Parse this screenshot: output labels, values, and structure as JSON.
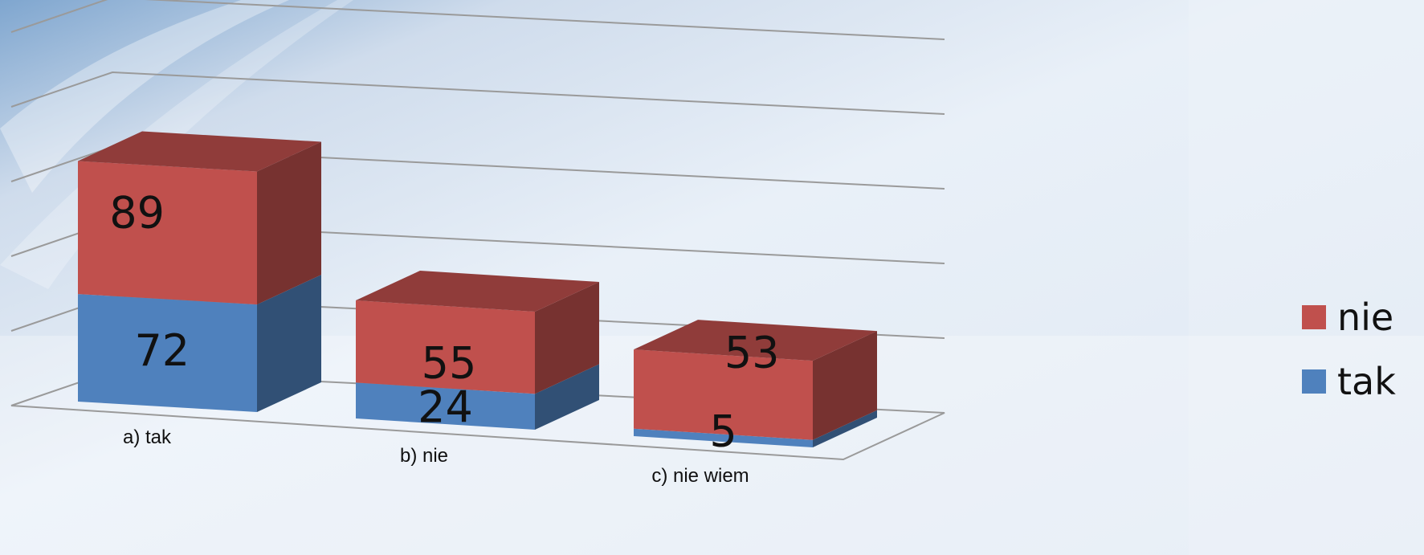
{
  "chart_data": {
    "type": "bar",
    "stacked": true,
    "three_d": true,
    "categories": [
      "a) tak",
      "b) nie",
      "c) nie wiem"
    ],
    "series": [
      {
        "name": "tak",
        "values": [
          72,
          24,
          5
        ],
        "color": "#4f81bd"
      },
      {
        "name": "nie",
        "values": [
          89,
          55,
          53
        ],
        "color": "#c0504d"
      }
    ],
    "ylim": [
      0,
      250
    ],
    "grid": true,
    "legend_position": "right"
  },
  "legend": {
    "items": [
      {
        "label": "nie",
        "color": "#c0504d"
      },
      {
        "label": "tak",
        "color": "#4f81bd"
      }
    ]
  }
}
